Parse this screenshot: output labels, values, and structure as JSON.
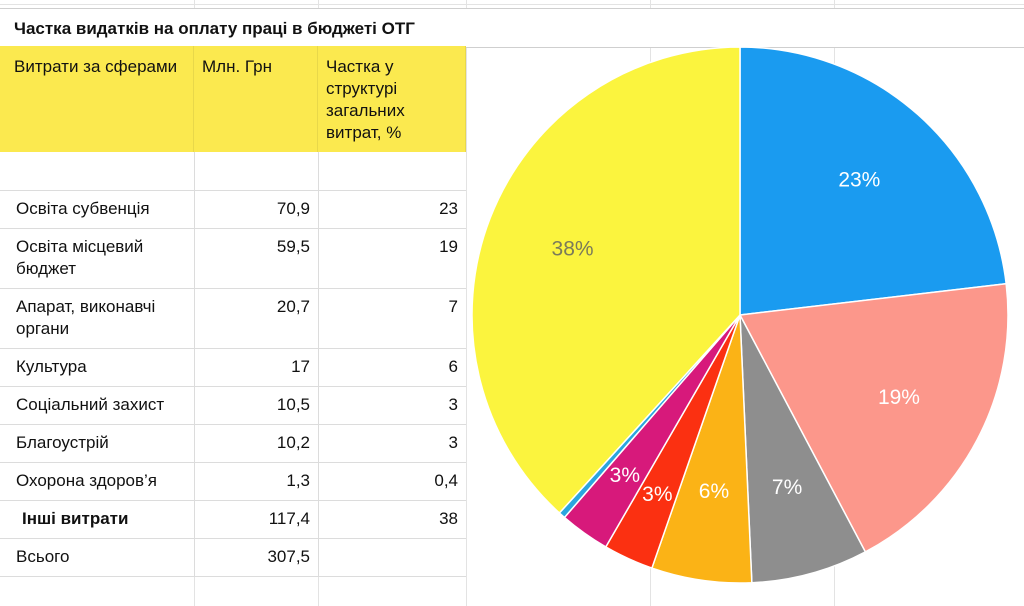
{
  "title": "Частка видатків на оплату праці в бюджеті ОТГ",
  "table": {
    "headers": [
      "Витрати за сферами",
      "Млн. Грн",
      "Частка у структурі загальних витрат, %"
    ],
    "rows": [
      {
        "name": "Освіта субвенція",
        "mln": "70,9",
        "share": "23"
      },
      {
        "name": "Освіта місцевий бюджет",
        "mln": "59,5",
        "share": "19"
      },
      {
        "name": "Апарат, виконавчі органи",
        "mln": "20,7",
        "share": "7"
      },
      {
        "name": "Культура",
        "mln": "17",
        "share": "6"
      },
      {
        "name": "Соціальний захист",
        "mln": "10,5",
        "share": "3"
      },
      {
        "name": "Благоустрій",
        "mln": "10,2",
        "share": "3"
      },
      {
        "name": "Охорона здоров’я",
        "mln": "1,3",
        "share": "0,4"
      },
      {
        "name": "Інші витрати",
        "mln": "117,4",
        "share": "38"
      },
      {
        "name": "Всього",
        "mln": "307,5",
        "share": ""
      }
    ]
  },
  "chart_data": {
    "type": "pie",
    "slices": [
      {
        "value": 23,
        "label": "23%",
        "color": "#1a9bf0"
      },
      {
        "value": 19,
        "label": "19%",
        "color": "#fc978b"
      },
      {
        "value": 7,
        "label": "7%",
        "color": "#8e8e8e"
      },
      {
        "value": 6,
        "label": "6%",
        "color": "#fbb316"
      },
      {
        "value": 3,
        "label": "3%",
        "color": "#fb3011"
      },
      {
        "value": 3,
        "label": "3%",
        "color": "#d7197b"
      },
      {
        "value": 0.4,
        "label": "",
        "color": "#2aa6df"
      },
      {
        "value": 38,
        "label": "38%",
        "color": "#fbf43e"
      }
    ],
    "label_colors": [
      "#ffffff",
      "#ffffff",
      "#ffffff",
      "#ffffff",
      "#ffffff",
      "#ffffff",
      "#ffffff",
      "#7a7a5a"
    ]
  }
}
